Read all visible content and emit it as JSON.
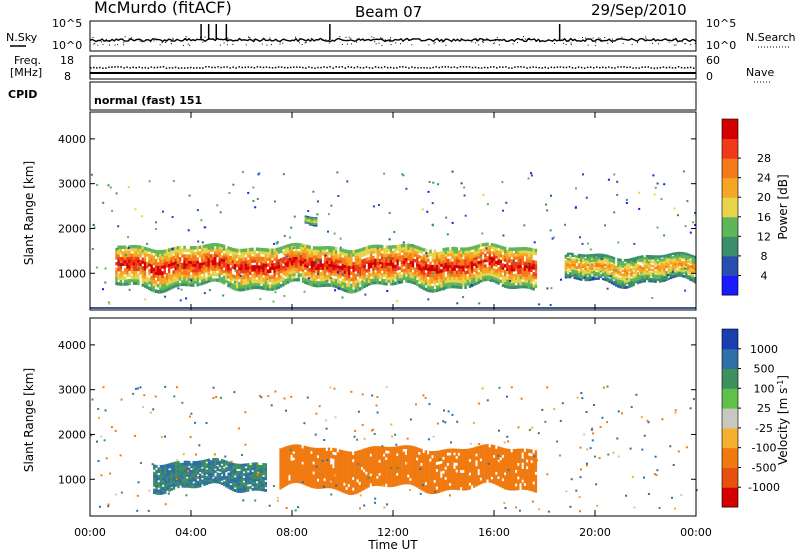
{
  "header": {
    "station": "McMurdo (fitACF)",
    "beam": "Beam 07",
    "date": "29/Sep/2010"
  },
  "noise_panel": {
    "left_label": "N.Sky",
    "right_label": "N.Search",
    "left_ticks": [
      "10^5",
      "10^0"
    ],
    "right_ticks": [
      "10^5",
      "10^0"
    ]
  },
  "freq_panel": {
    "left_label_1": "Freq.",
    "left_label_2": "[MHz]",
    "right_label": "Nave",
    "left_ticks": [
      "18",
      "8"
    ],
    "right_ticks": [
      "60",
      "0"
    ]
  },
  "cpid_panel": {
    "label": "CPID",
    "mode": "normal (fast) 151"
  },
  "axes": {
    "ylabel": "Slant Range [km]",
    "xlabel": "Time UT",
    "yticks": [
      "1000",
      "2000",
      "3000",
      "4000"
    ],
    "xticks": [
      "00:00",
      "04:00",
      "08:00",
      "12:00",
      "16:00",
      "20:00",
      "00:00"
    ]
  },
  "power_colorbar": {
    "label": "Power [dB]",
    "ticks": [
      "4",
      "8",
      "12",
      "16",
      "20",
      "24",
      "28"
    ],
    "colors": [
      "#1a1aff",
      "#2a4db0",
      "#3a8f6a",
      "#5fb55a",
      "#e8d44a",
      "#f5a623",
      "#f57a1a",
      "#f03a1a",
      "#d40000"
    ]
  },
  "velocity_colorbar": {
    "label": "Velocity [m s",
    "label_sup": "-1",
    "label_close": "]",
    "ticks": [
      "1000",
      "500",
      "100",
      "25",
      "-25",
      "-100",
      "-500",
      "-1000"
    ],
    "colors": [
      "#1a3db0",
      "#2f6fa8",
      "#3f8f5f",
      "#5fc04a",
      "#c8c8c0",
      "#f5b030",
      "#f07a10",
      "#e85010",
      "#d40000"
    ]
  },
  "chart_data": {
    "type": "heatmap",
    "x_range_hours": [
      0,
      24
    ],
    "y_range_km": [
      180,
      4600
    ],
    "panels": [
      {
        "name": "Power [dB]",
        "colorscale": [
          0,
          30
        ],
        "features": [
          {
            "desc": "main E/F-region echo band",
            "t_start": 1.0,
            "t_end": 17.7,
            "range_km": [
              700,
              1600
            ],
            "peak_db": 28
          },
          {
            "desc": "late echo band",
            "t_start": 18.8,
            "t_end": 24.0,
            "range_km": [
              800,
              1400
            ],
            "peak_db": 20
          },
          {
            "desc": "patch",
            "t_start": 8.5,
            "t_end": 9.0,
            "range_km": [
              2050,
              2250
            ],
            "peak_db": 16
          }
        ]
      },
      {
        "name": "Velocity [m s-1]",
        "colorscale": [
          -1000,
          1000
        ],
        "features": [
          {
            "desc": "positive velocity band",
            "t_start": 2.5,
            "t_end": 7.0,
            "range_km": [
              800,
              1400
            ],
            "velocity": 100
          },
          {
            "desc": "negative velocity band",
            "t_start": 7.5,
            "t_end": 17.7,
            "range_km": [
              800,
              1700
            ],
            "velocity": -300
          }
        ]
      }
    ]
  }
}
